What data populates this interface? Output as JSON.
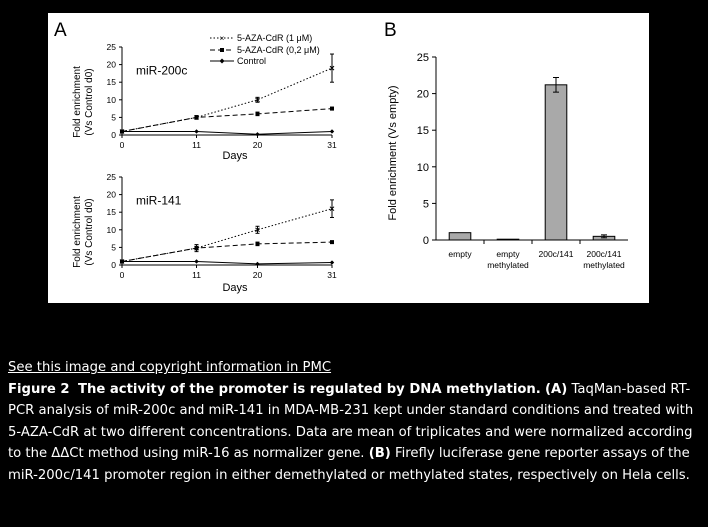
{
  "figure": {
    "panel_a_label": "A",
    "panel_b_label": "B",
    "legend": [
      {
        "label": "5-AZA-CdR (1 μM)",
        "style": "dotted",
        "marker": "x"
      },
      {
        "label": "5-AZA-CdR (0,2 μM)",
        "style": "dashed",
        "marker": "square"
      },
      {
        "label": "Control",
        "style": "solid",
        "marker": "diamond"
      }
    ],
    "a_ylabel_line1": "Fold enrichment",
    "a_ylabel_line2": "(Vs Control d0)",
    "a_xlabel": "Days",
    "b_ylabel": "Fold enrichment (Vs empty)"
  },
  "chart_data": [
    {
      "type": "line",
      "panel": "A",
      "title": "miR-200c",
      "xlabel": "Days",
      "ylabel": "Fold enrichment (Vs Control d0)",
      "x": [
        0,
        11,
        20,
        31
      ],
      "xlim": [
        0,
        31
      ],
      "ylim": [
        0,
        25
      ],
      "yticks": [
        0,
        5,
        10,
        15,
        20,
        25
      ],
      "series": [
        {
          "name": "5-AZA-CdR (1 μM)",
          "values": [
            1,
            5,
            10,
            19
          ],
          "err": [
            0,
            0.5,
            0.7,
            4
          ]
        },
        {
          "name": "5-AZA-CdR (0,2 μM)",
          "values": [
            1,
            5,
            6,
            7.5
          ],
          "err": [
            0,
            0.5,
            0.5,
            0.4
          ]
        },
        {
          "name": "Control",
          "values": [
            1,
            1,
            0.2,
            1
          ],
          "err": [
            0,
            0,
            0,
            0
          ]
        }
      ]
    },
    {
      "type": "line",
      "panel": "A",
      "title": "miR-141",
      "xlabel": "Days",
      "ylabel": "Fold enrichment (Vs Control d0)",
      "x": [
        0,
        11,
        20,
        31
      ],
      "xlim": [
        0,
        31
      ],
      "ylim": [
        0,
        25
      ],
      "yticks": [
        0,
        5,
        10,
        15,
        20,
        25
      ],
      "series": [
        {
          "name": "5-AZA-CdR (1 μM)",
          "values": [
            1,
            4.8,
            10,
            16
          ],
          "err": [
            0,
            1,
            1,
            2.5
          ]
        },
        {
          "name": "5-AZA-CdR (0,2 μM)",
          "values": [
            1,
            4.8,
            6,
            6.5
          ],
          "err": [
            0,
            0.5,
            0.5,
            0.3
          ]
        },
        {
          "name": "Control",
          "values": [
            1,
            1,
            0.3,
            0.7
          ],
          "err": [
            0,
            0,
            0,
            0
          ]
        }
      ]
    },
    {
      "type": "bar",
      "panel": "B",
      "ylabel": "Fold enrichment (Vs empty)",
      "categories": [
        "empty",
        "empty methylated",
        "200c/141",
        "200c/141 methylated"
      ],
      "category_lines": [
        [
          "empty"
        ],
        [
          "empty",
          "methylated"
        ],
        [
          "200c/141"
        ],
        [
          "200c/141",
          "methylated"
        ]
      ],
      "values": [
        1,
        0.05,
        21.2,
        0.5
      ],
      "err": [
        0,
        0,
        1,
        0.2
      ],
      "ylim": [
        0,
        25
      ],
      "yticks": [
        0,
        5,
        10,
        15,
        20,
        25
      ],
      "bar_color": "#a9a9a9"
    }
  ],
  "caption": {
    "link_text": "See this image and copyright information in PMC",
    "figure_label": "Figure 2",
    "title": "The activity of the promoter is regulated by DNA methylation.",
    "part_a_label": "(A)",
    "part_a_text": "TaqMan-based RT-PCR analysis of miR-200c and miR-141 in MDA-MB-231 kept under standard conditions and treated with 5-AZA-CdR at two different concentrations. Data are mean of triplicates and were normalized according to the ΔΔCt method using miR-16 as normalizer gene.",
    "part_b_label": "(B)",
    "part_b_text": "Firefly luciferase gene reporter assays of the miR-200c/141 promoter region in either demethylated or methylated states, respectively on Hela cells."
  }
}
